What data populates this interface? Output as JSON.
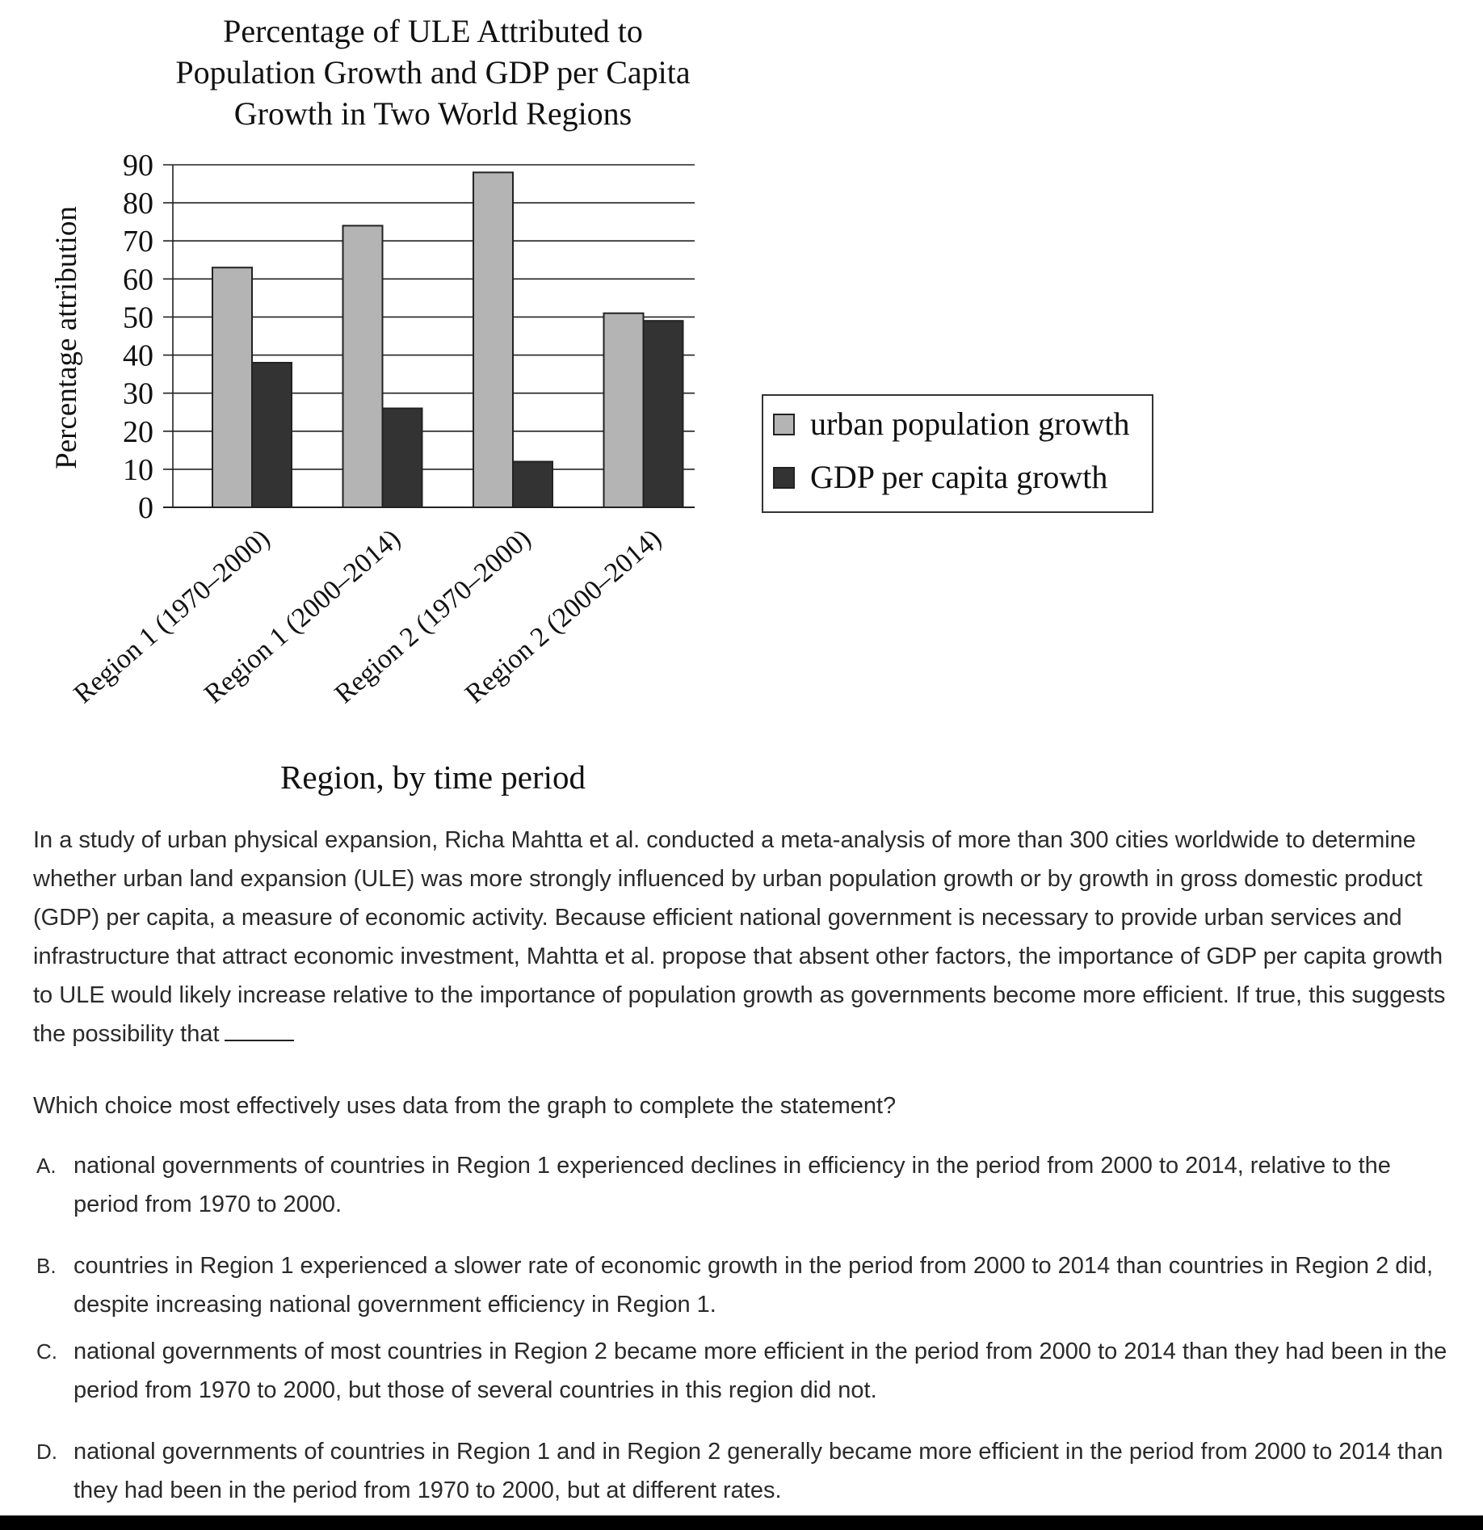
{
  "chart_data": {
    "type": "bar",
    "title": [
      "Percentage of ULE Attributed to",
      "Population Growth and GDP per Capita",
      "Growth in Two World Regions"
    ],
    "xlabel": "Region, by time period",
    "ylabel": "Percentage attribution",
    "ylim": [
      0,
      90
    ],
    "yticks": [
      0,
      10,
      20,
      30,
      40,
      50,
      60,
      70,
      80,
      90
    ],
    "grid": true,
    "legend_position": "right",
    "categories": [
      "Region 1 (1970–2000)",
      "Region 1 (2000–2014)",
      "Region 2 (1970–2000)",
      "Region 2 (2000–2014)"
    ],
    "series": [
      {
        "name": "urban population growth",
        "values": [
          63,
          74,
          88,
          51
        ],
        "color": "#b4b4b4"
      },
      {
        "name": "GDP per capita growth",
        "values": [
          38,
          26,
          12,
          49
        ],
        "color": "#333333"
      }
    ]
  },
  "passage": "In a study of urban physical expansion, Richa Mahtta et al. conducted a meta-analysis of more than 300 cities worldwide to determine whether urban land expansion (ULE) was more strongly influenced by urban population growth or by growth in gross domestic product (GDP) per capita, a measure of economic activity. Because efficient national government is necessary to provide urban services and infrastructure that attract economic investment, Mahtta et al. propose that absent other factors, the importance of GDP per capita growth to ULE would likely increase relative to the importance of population growth as governments become more efficient. If true, this suggests the possibility that",
  "question": "Which choice most effectively uses data from the graph to complete the statement?",
  "choices": [
    {
      "letter": "A.",
      "text": "national governments of countries in Region 1 experienced declines in efficiency in the period from 2000 to 2014, relative to the period from 1970 to 2000."
    },
    {
      "letter": "B.",
      "text": "countries in Region 1 experienced a slower rate of economic growth in the period from 2000 to 2014 than countries in Region 2 did, despite increasing national government efficiency in Region 1."
    },
    {
      "letter": "C.",
      "text": "national governments of most countries in Region 2 became more efficient in the period from 2000 to 2014 than they had been in the period from 1970 to 2000, but those of several countries in this region did not."
    },
    {
      "letter": "D.",
      "text": "national governments of countries in Region 1 and in Region 2 generally became more efficient in the period from 2000 to 2014 than they had been in the period from 1970 to 2000, but at different rates."
    }
  ]
}
